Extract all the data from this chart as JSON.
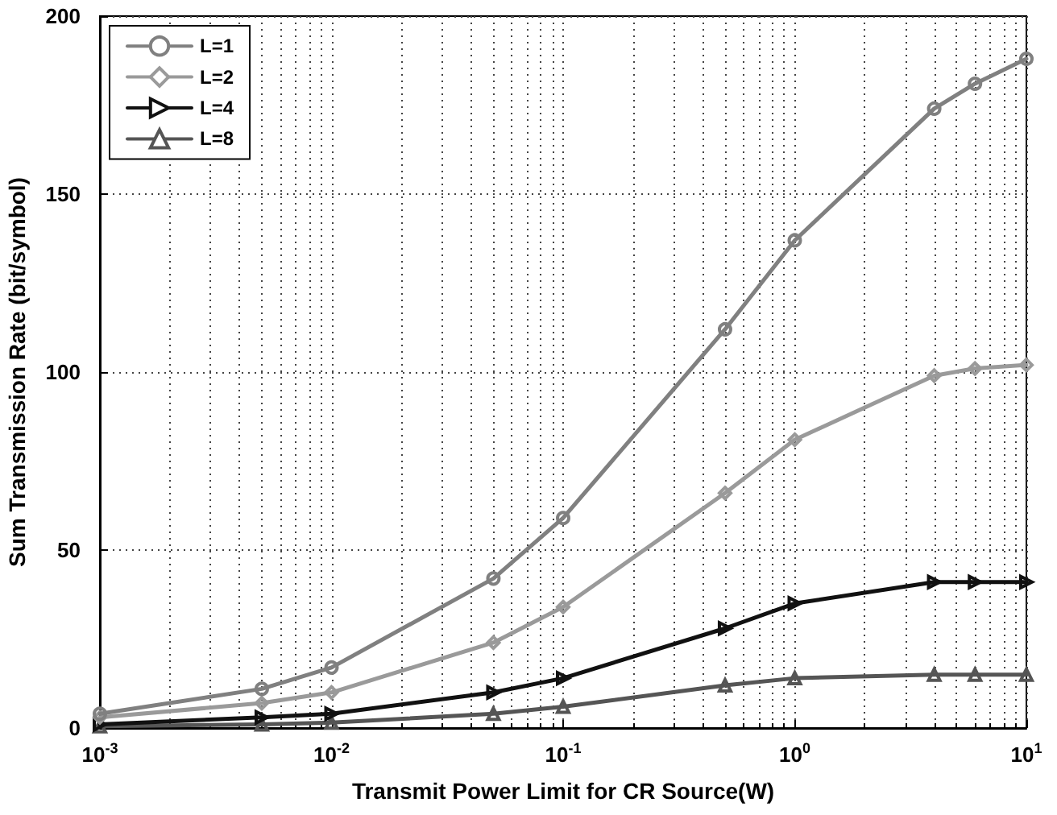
{
  "chart_data": {
    "type": "line",
    "xlabel": "Transmit Power Limit for CR Source(W)",
    "ylabel": "Sum Transmission Rate (bit/symbol)",
    "x": [
      0.001,
      0.005,
      0.01,
      0.05,
      0.1,
      0.5,
      1,
      4,
      6,
      10
    ],
    "series": [
      {
        "name": "L=1",
        "color": "#808080",
        "marker": "circle",
        "values": [
          4,
          11,
          17,
          42,
          59,
          112,
          137,
          174,
          181,
          188
        ]
      },
      {
        "name": "L=2",
        "color": "#9a9a9a",
        "marker": "diamond",
        "values": [
          3,
          7,
          10,
          24,
          34,
          66,
          81,
          99,
          101,
          102
        ]
      },
      {
        "name": "L=4",
        "color": "#111111",
        "marker": "triangle",
        "values": [
          1,
          3,
          4,
          10,
          14,
          28,
          35,
          41,
          41,
          41
        ]
      },
      {
        "name": "L=8",
        "color": "#555555",
        "marker": "triangle",
        "values": [
          0.5,
          1,
          1.5,
          4,
          6,
          12,
          14,
          15,
          15,
          15
        ]
      }
    ],
    "log": "x",
    "xlim": [
      0.001,
      10
    ],
    "xticks": [
      {
        "value": 0.001,
        "label": "10$^{-3}$"
      },
      {
        "value": 0.01,
        "label": "10$^{-2}$"
      },
      {
        "value": 0.1,
        "label": "10$^{-1}$"
      },
      {
        "value": 1,
        "label": "10$^{0}$"
      },
      {
        "value": 10,
        "label": "10$^{1}$"
      }
    ],
    "ylim": [
      0,
      200
    ],
    "yticks": [
      0,
      50,
      100,
      150,
      200
    ],
    "grid": true,
    "legend": "top left",
    "line_style": "solid"
  }
}
